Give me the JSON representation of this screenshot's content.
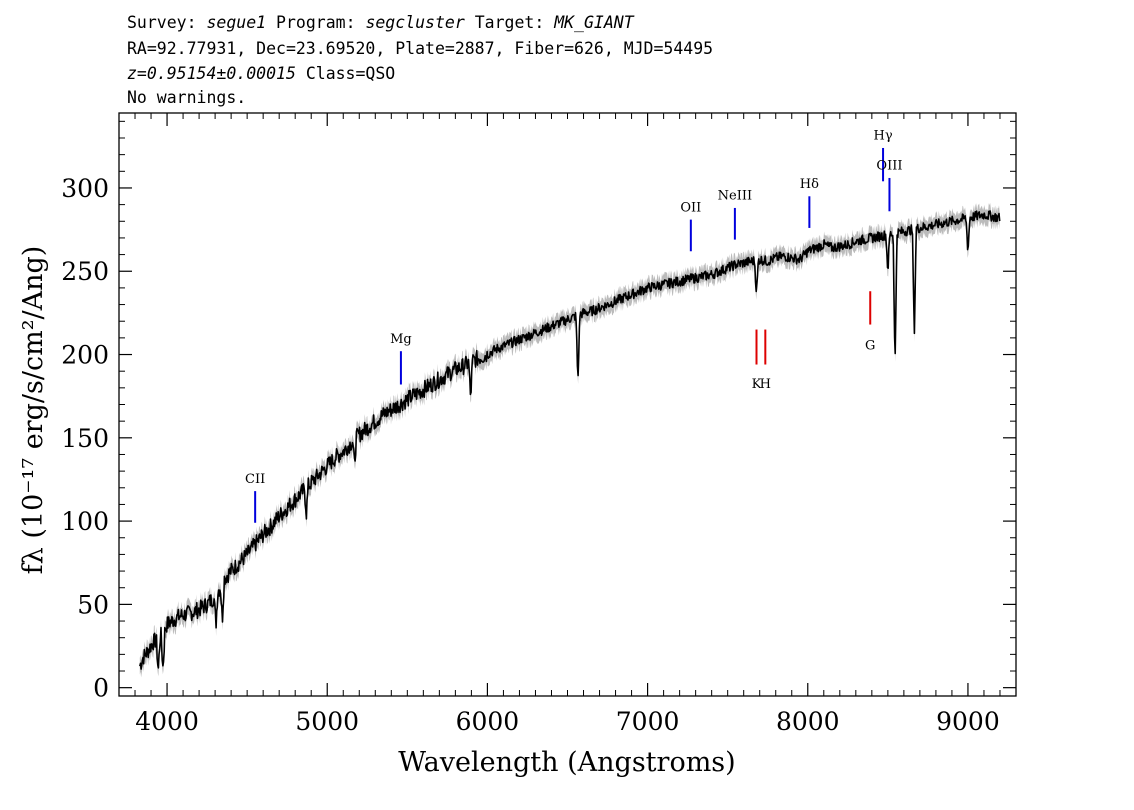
{
  "header": {
    "survey_label": "Survey: ",
    "survey": "segue1",
    "program_label": " Program: ",
    "program": "segcluster",
    "target_label": " Target: ",
    "target": "MK_GIANT",
    "line2": "RA=92.77931, Dec=23.69520, Plate=2887, Fiber=626, MJD=54495",
    "redshift": "z=0.95154±0.00015",
    "class": " Class=QSO",
    "warnings": "No warnings."
  },
  "chart_data": {
    "type": "line",
    "xlabel": "Wavelength (Angstroms)",
    "ylabel": "fλ (10⁻¹⁷ erg/s/cm²/Ang)",
    "xlim": [
      3700,
      9300
    ],
    "ylim": [
      -5,
      345
    ],
    "xticks": [
      "4000",
      "5000",
      "6000",
      "7000",
      "8000",
      "9000"
    ],
    "yticks": [
      "0",
      "50",
      "100",
      "150",
      "200",
      "250",
      "300"
    ],
    "colors": {
      "spectrum": "#000000",
      "error_band": "#bbbbbb",
      "emission": "#0000dd",
      "absorption": "#dd0000"
    },
    "series": [
      {
        "x": [
          3830,
          3850,
          3880,
          3910,
          3950,
          3970,
          4000,
          4030,
          4080,
          4150,
          4200,
          4250,
          4300,
          4330,
          4360,
          4400,
          4450,
          4500,
          4550,
          4600,
          4650,
          4700,
          4750,
          4800,
          4850,
          4900,
          4950,
          5000,
          5050,
          5100,
          5150,
          5200,
          5250,
          5300,
          5350,
          5400,
          5450,
          5500,
          5550,
          5600,
          5650,
          5700,
          5750,
          5800,
          5850,
          5900,
          5950,
          6000,
          6050,
          6100,
          6150,
          6200,
          6250,
          6300,
          6350,
          6400,
          6450,
          6500,
          6550,
          6600,
          6650,
          6700,
          6750,
          6800,
          6850,
          6900,
          6950,
          7000,
          7050,
          7100,
          7150,
          7200,
          7250,
          7300,
          7350,
          7400,
          7450,
          7500,
          7550,
          7600,
          7650,
          7700,
          7750,
          7800,
          7850,
          7900,
          7950,
          8000,
          8050,
          8100,
          8150,
          8200,
          8250,
          8300,
          8350,
          8400,
          8450,
          8500,
          8550,
          8600,
          8650,
          8700,
          8750,
          8800,
          8850,
          8900,
          8950,
          9000,
          9050,
          9100,
          9150,
          9200
        ],
        "y": [
          13,
          18,
          22,
          27,
          30,
          32,
          38,
          40,
          43,
          45,
          47,
          50,
          55,
          60,
          66,
          70,
          75,
          80,
          86,
          92,
          97,
          103,
          108,
          113,
          118,
          123,
          128,
          133,
          138,
          142,
          147,
          152,
          156,
          160,
          164,
          167,
          170,
          173,
          176,
          179,
          182,
          185,
          188,
          191,
          193,
          196,
          198,
          200,
          203,
          205,
          207,
          209,
          211,
          213,
          215,
          217,
          219,
          221,
          223,
          225,
          226,
          228,
          230,
          232,
          234,
          236,
          238,
          240,
          241,
          242,
          243,
          244,
          245,
          246,
          247,
          248,
          250,
          252,
          254,
          255,
          256,
          257,
          256,
          258,
          259,
          258,
          257,
          262,
          264,
          266,
          264,
          265,
          266,
          268,
          269,
          270,
          271,
          272,
          273,
          274,
          275,
          276,
          277,
          278,
          279,
          280,
          281,
          282,
          283,
          284,
          283,
          282
        ]
      }
    ],
    "absorption_dips": [
      {
        "x": 3945,
        "depth": 20
      },
      {
        "x": 3975,
        "depth": 22
      },
      {
        "x": 4305,
        "depth": 18
      },
      {
        "x": 4345,
        "depth": 22
      },
      {
        "x": 4870,
        "depth": 15
      },
      {
        "x": 5170,
        "depth": 15
      },
      {
        "x": 5895,
        "depth": 22
      },
      {
        "x": 6565,
        "depth": 40
      },
      {
        "x": 7680,
        "depth": 20
      },
      {
        "x": 8500,
        "depth": 22
      },
      {
        "x": 8545,
        "depth": 80
      },
      {
        "x": 8665,
        "depth": 65
      },
      {
        "x": 9000,
        "depth": 20
      }
    ],
    "line_markers": [
      {
        "label": "CII",
        "x": 4550,
        "kind": "emission",
        "y_bottom": 99,
        "y_top": 118,
        "label_y": 123
      },
      {
        "label": "Mg",
        "x": 5460,
        "kind": "emission",
        "y_bottom": 182,
        "y_top": 202,
        "label_y": 207
      },
      {
        "label": "OII",
        "x": 7270,
        "kind": "emission",
        "y_bottom": 262,
        "y_top": 281,
        "label_y": 286
      },
      {
        "label": "NeIII",
        "x": 7545,
        "kind": "emission",
        "y_bottom": 269,
        "y_top": 288,
        "label_y": 293
      },
      {
        "label": "Hδ",
        "x": 8010,
        "kind": "emission",
        "y_bottom": 276,
        "y_top": 295,
        "label_y": 300
      },
      {
        "label": "Hγ",
        "x": 8470,
        "kind": "emission",
        "y_bottom": 304,
        "y_top": 324,
        "label_y": 329
      },
      {
        "label": "OIII",
        "x": 8510,
        "kind": "emission",
        "y_bottom": 286,
        "y_top": 306,
        "label_y": 311
      },
      {
        "label": "K",
        "x": 7680,
        "kind": "absorption",
        "y_bottom": 194,
        "y_top": 215,
        "label_y": 180
      },
      {
        "label": "H",
        "x": 7735,
        "kind": "absorption",
        "y_bottom": 194,
        "y_top": 215,
        "label_y": 180
      },
      {
        "label": "G",
        "x": 8390,
        "kind": "absorption",
        "y_bottom": 218,
        "y_top": 238,
        "label_y": 203
      }
    ]
  }
}
